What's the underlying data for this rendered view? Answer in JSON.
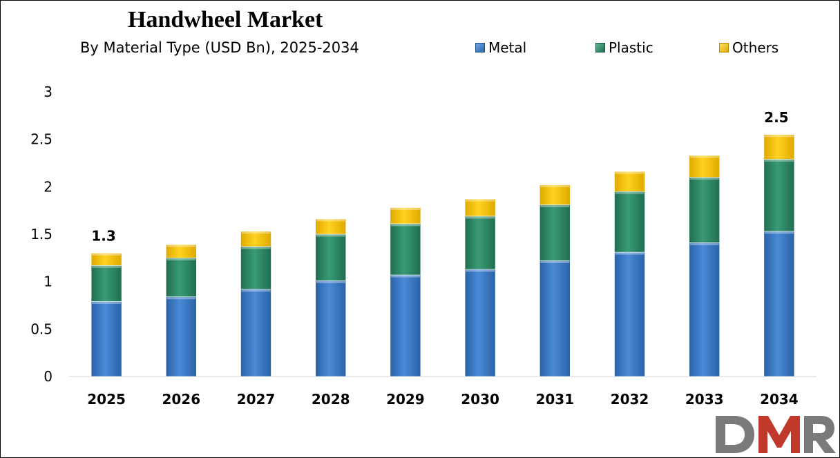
{
  "chart_data": {
    "type": "bar",
    "stacked": true,
    "title": "Handwheel Market",
    "subtitle": "By Material Type (USD Bn), 2025-2034",
    "categories": [
      "2025",
      "2026",
      "2027",
      "2028",
      "2029",
      "2030",
      "2031",
      "2032",
      "2033",
      "2034"
    ],
    "series": [
      {
        "name": "Metal",
        "color": "#3A7BC8",
        "values": [
          0.79,
          0.84,
          0.92,
          1.01,
          1.07,
          1.13,
          1.22,
          1.31,
          1.41,
          1.53
        ]
      },
      {
        "name": "Plastic",
        "color": "#2E8B6A",
        "values": [
          0.38,
          0.41,
          0.45,
          0.49,
          0.54,
          0.56,
          0.59,
          0.64,
          0.69,
          0.76
        ]
      },
      {
        "name": "Others",
        "color": "#FFC000",
        "values": [
          0.13,
          0.14,
          0.16,
          0.16,
          0.17,
          0.18,
          0.21,
          0.21,
          0.23,
          0.26
        ]
      }
    ],
    "total_labels": [
      {
        "category": "2025",
        "text": "1.3"
      },
      {
        "category": "2034",
        "text": "2.5"
      }
    ],
    "ylim": [
      0,
      3
    ],
    "yticks": [
      "0",
      "0.5",
      "1",
      "1.5",
      "2",
      "2.5",
      "3"
    ],
    "xlabel": "",
    "ylabel": "",
    "grid": false,
    "legend_position": "top-right"
  },
  "logo": {
    "text": "DMR",
    "colors": [
      "#7a7a7a",
      "#c0392b",
      "#7a7a7a"
    ]
  }
}
